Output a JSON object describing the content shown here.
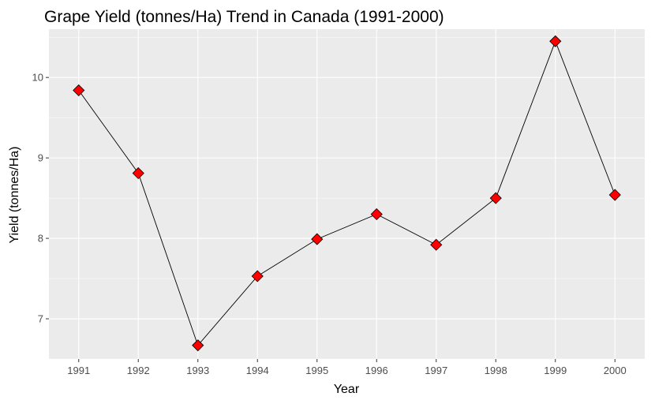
{
  "chart_data": {
    "type": "line",
    "title": "Grape Yield (tonnes/Ha) Trend in Canada (1991-2000)",
    "xlabel": "Year",
    "ylabel": "Yield (tonnes/Ha)",
    "x": [
      "1991",
      "1992",
      "1993",
      "1994",
      "1995",
      "1996",
      "1997",
      "1998",
      "1999",
      "2000"
    ],
    "y_ticks": [
      "7",
      "8",
      "9",
      "10"
    ],
    "series": [
      {
        "values": [
          9.84,
          8.81,
          6.67,
          7.53,
          7.99,
          8.3,
          7.92,
          8.5,
          10.45,
          8.54
        ]
      }
    ],
    "ylim": [
      6.5,
      10.6
    ],
    "grid": true,
    "legend": "none",
    "colors": {
      "panel_background": "#ebebeb",
      "grid": "#ffffff",
      "line": "#000000",
      "marker_fill": "#ff0000",
      "marker_stroke": "#000000"
    },
    "marker": "diamond"
  }
}
